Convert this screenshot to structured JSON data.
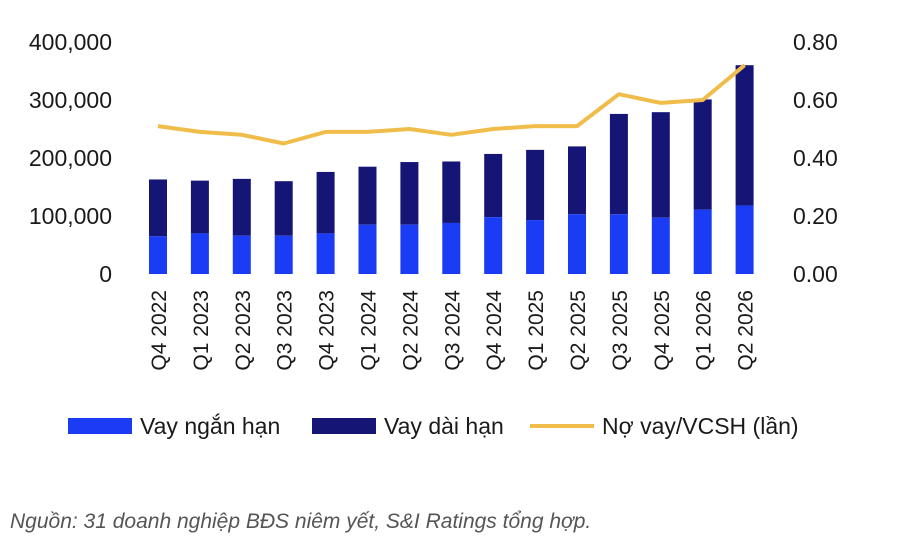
{
  "chart_data": {
    "type": "bar",
    "stacked": true,
    "categories": [
      "Q4 2022",
      "Q1 2023",
      "Q2 2023",
      "Q3 2023",
      "Q4 2023",
      "Q1 2024",
      "Q2 2024",
      "Q3 2024",
      "Q4 2024",
      "Q1 2025",
      "Q2 2025",
      "Q3 2025",
      "Q4 2025",
      "Q1 2026",
      "Q2 2026"
    ],
    "series": [
      {
        "name": "Vay ngắn hạn",
        "type": "bar",
        "axis": "left",
        "color": "#1a3cf5",
        "values": [
          65000,
          70000,
          66000,
          66000,
          70000,
          85000,
          85000,
          88000,
          98000,
          93000,
          103000,
          103000,
          97000,
          111000,
          118000
        ]
      },
      {
        "name": "Vay dài hạn",
        "type": "bar",
        "axis": "left",
        "color": "#151576",
        "values": [
          98000,
          91000,
          98000,
          94000,
          106000,
          100000,
          108000,
          106000,
          109000,
          121000,
          117000,
          173000,
          182000,
          190000,
          242000
        ]
      },
      {
        "name": "Nợ vay/VCSH (lần)",
        "type": "line",
        "axis": "right",
        "color": "#f0bd4a",
        "values": [
          0.51,
          0.49,
          0.48,
          0.45,
          0.49,
          0.49,
          0.5,
          0.48,
          0.5,
          0.51,
          0.51,
          0.62,
          0.59,
          0.6,
          0.72
        ]
      }
    ],
    "y_left": {
      "ylim": [
        0,
        400000
      ],
      "ticks": [
        "0",
        "100,000",
        "200,000",
        "300,000",
        "400,000"
      ]
    },
    "y_right": {
      "ylim": [
        0,
        0.8
      ],
      "ticks": [
        "0.00",
        "0.20",
        "0.40",
        "0.60",
        "0.80"
      ]
    },
    "grid": false,
    "legend": "bottom"
  },
  "source_note": "Nguồn: 31 doanh nghiệp BĐS niêm yết,  S&I Ratings tổng hợp."
}
